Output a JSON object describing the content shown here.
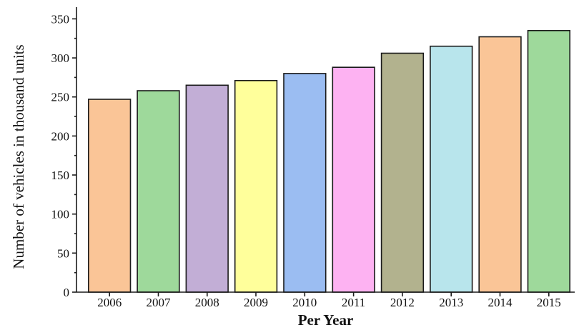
{
  "chart_data": {
    "type": "bar",
    "title": "",
    "xlabel": "Per Year",
    "ylabel": "Number of vehicles in thousand units",
    "categories": [
      "2006",
      "2007",
      "2008",
      "2009",
      "2010",
      "2011",
      "2012",
      "2013",
      "2014",
      "2015"
    ],
    "values": [
      247,
      258,
      265,
      271,
      280,
      288,
      306,
      315,
      327,
      335
    ],
    "ylim": [
      0,
      365
    ],
    "yticks": [
      "0",
      "50",
      "100",
      "150",
      "200",
      "250",
      "300",
      "350"
    ],
    "grid": false,
    "legend": "none",
    "colors": [
      "#fac597",
      "#9ed99b",
      "#c2aed6",
      "#ffff9b",
      "#9bbdf2",
      "#fdb2f2",
      "#b2b28e",
      "#b8e5ec",
      "#fac597",
      "#9ed99b"
    ]
  }
}
